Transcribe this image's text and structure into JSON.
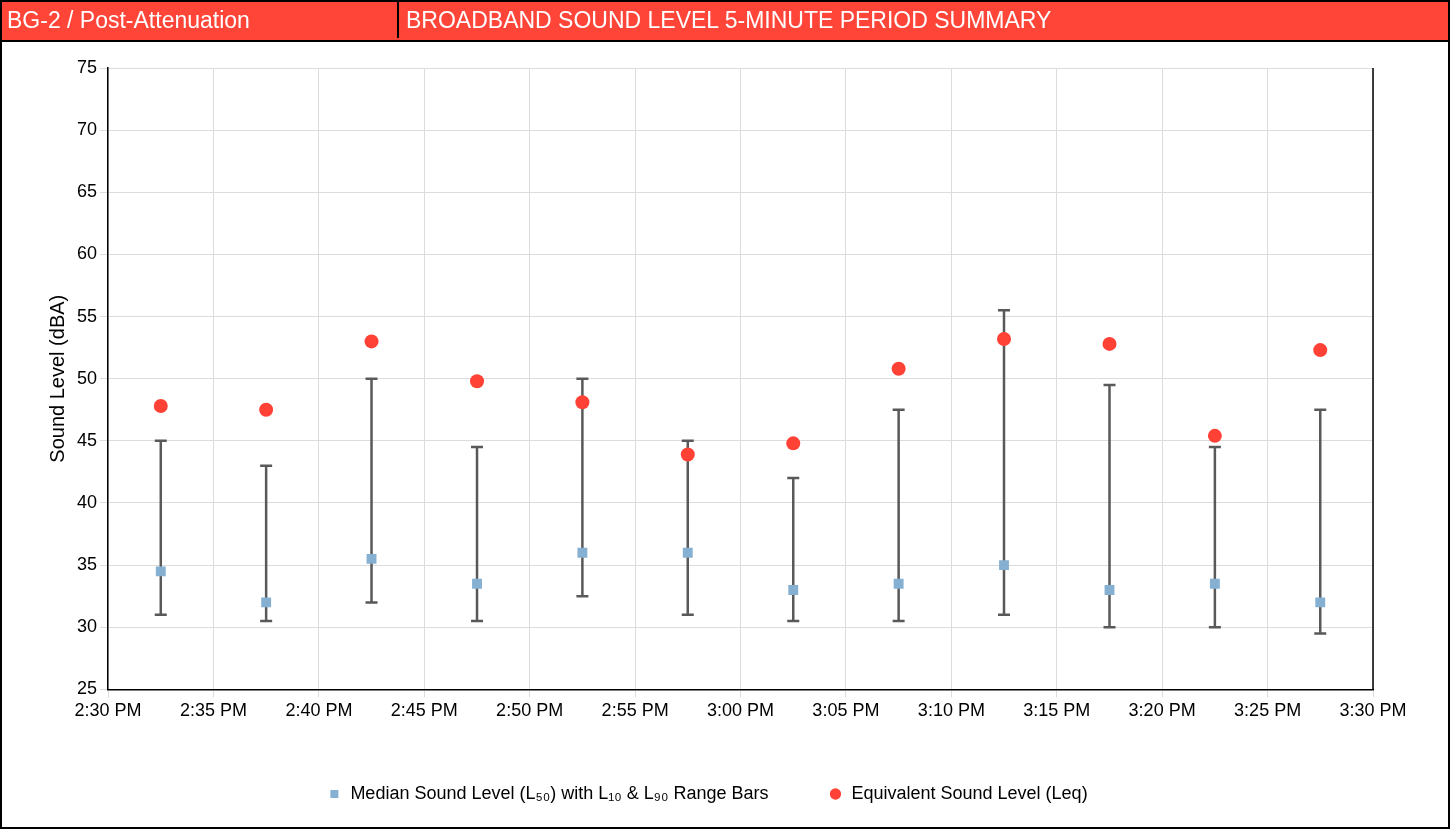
{
  "chart_data": {
    "type": "scatter",
    "subtitle": "BG-2 / Post-Attenuation",
    "title": "BROADBAND SOUND LEVEL 5-MINUTE PERIOD SUMMARY",
    "ylabel": "Sound Level (dBA)",
    "x": [
      14.5417,
      14.625,
      14.7083,
      14.7917,
      14.875,
      14.9583,
      15.0417,
      15.125,
      15.2083,
      15.2917,
      15.375,
      15.4583
    ],
    "xlim": [
      14.5,
      15.5
    ],
    "xticks": [
      {
        "value": 14.5,
        "label": "2:30 PM"
      },
      {
        "value": 14.5833,
        "label": "2:35 PM"
      },
      {
        "value": 14.6667,
        "label": "2:40 PM"
      },
      {
        "value": 14.75,
        "label": "2:45 PM"
      },
      {
        "value": 14.8333,
        "label": "2:50 PM"
      },
      {
        "value": 14.9167,
        "label": "2:55 PM"
      },
      {
        "value": 15,
        "label": "3:00 PM"
      },
      {
        "value": 15.0833,
        "label": "3:05 PM"
      },
      {
        "value": 15.1667,
        "label": "3:10 PM"
      },
      {
        "value": 15.25,
        "label": "3:15 PM"
      },
      {
        "value": 15.3333,
        "label": "3:20 PM"
      },
      {
        "value": 15.4167,
        "label": "3:25 PM"
      },
      {
        "value": 15.5,
        "label": "3:30 PM"
      }
    ],
    "ylim": [
      25,
      75
    ],
    "yticks": [
      25,
      30,
      35,
      40,
      45,
      50,
      55,
      60,
      65,
      70,
      75
    ],
    "grid": true,
    "legend": "bottom",
    "series": [
      {
        "name": "Median Sound Level (L₅₀) with L₁₀ & L₉₀ Range Bars",
        "color": "#86b0d2",
        "marker": "square",
        "values": [
          34.5,
          32,
          35.5,
          33.5,
          36,
          36,
          33,
          33.5,
          35,
          33,
          33.5,
          32
        ],
        "errors": [
          [
            31,
            45
          ],
          [
            30.5,
            43
          ],
          [
            32,
            50
          ],
          [
            30.5,
            44.5
          ],
          [
            32.5,
            50
          ],
          [
            31,
            45
          ],
          [
            30.5,
            42
          ],
          [
            30.5,
            47.5
          ],
          [
            31,
            55.5
          ],
          [
            30,
            49.5
          ],
          [
            30,
            44.5
          ],
          [
            29.5,
            47.5
          ]
        ]
      },
      {
        "name": "Equivalent Sound Level (Leq)",
        "color": "#ff4136",
        "marker": "circle",
        "values": [
          47.8,
          47.5,
          53,
          49.8,
          48.1,
          43.9,
          44.8,
          50.8,
          53.2,
          52.8,
          45.4,
          52.3
        ]
      }
    ]
  }
}
